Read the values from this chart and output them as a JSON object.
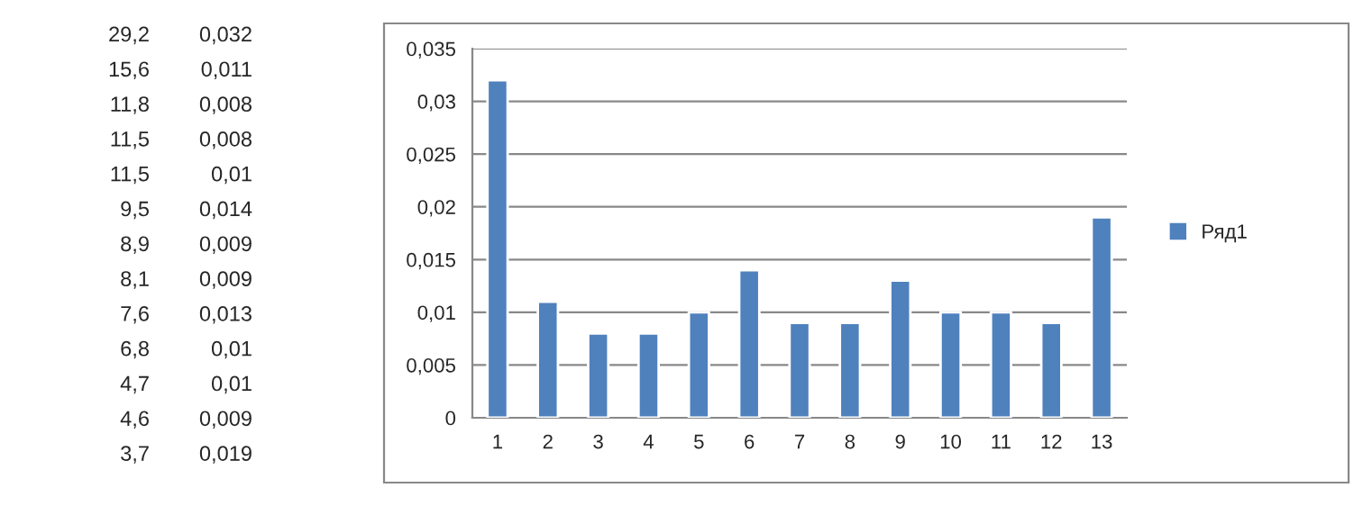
{
  "chart_data": {
    "type": "bar",
    "categories": [
      "1",
      "2",
      "3",
      "4",
      "5",
      "6",
      "7",
      "8",
      "9",
      "10",
      "11",
      "12",
      "13"
    ],
    "series": [
      {
        "name": "Ряд1",
        "color": "#4f81bd",
        "values": [
          0.032,
          0.011,
          0.008,
          0.008,
          0.01,
          0.014,
          0.009,
          0.009,
          0.013,
          0.01,
          0.01,
          0.009,
          0.019
        ]
      }
    ],
    "ylim": [
      0,
      0.035
    ],
    "yticks": [
      {
        "value": 0,
        "label": "0"
      },
      {
        "value": 0.005,
        "label": "0,005"
      },
      {
        "value": 0.01,
        "label": "0,01"
      },
      {
        "value": 0.015,
        "label": "0,015"
      },
      {
        "value": 0.02,
        "label": "0,02"
      },
      {
        "value": 0.025,
        "label": "0,025"
      },
      {
        "value": 0.03,
        "label": "0,03"
      },
      {
        "value": 0.035,
        "label": "0,035"
      }
    ],
    "grid": "y",
    "legend": "right",
    "annotations": [
      "29,2",
      "0,032",
      "15,6",
      "0,011",
      "11,8",
      "0,008",
      "11,5",
      "0,008",
      "11,5",
      "0,01",
      "9,5",
      "0,014",
      "8,9",
      "0,009",
      "8,1",
      "0,009",
      "7,6",
      "0,013",
      "6,8",
      "0,01",
      "4,7",
      "0,01",
      "4,6",
      "0,009",
      "3,7",
      "0,019"
    ]
  }
}
